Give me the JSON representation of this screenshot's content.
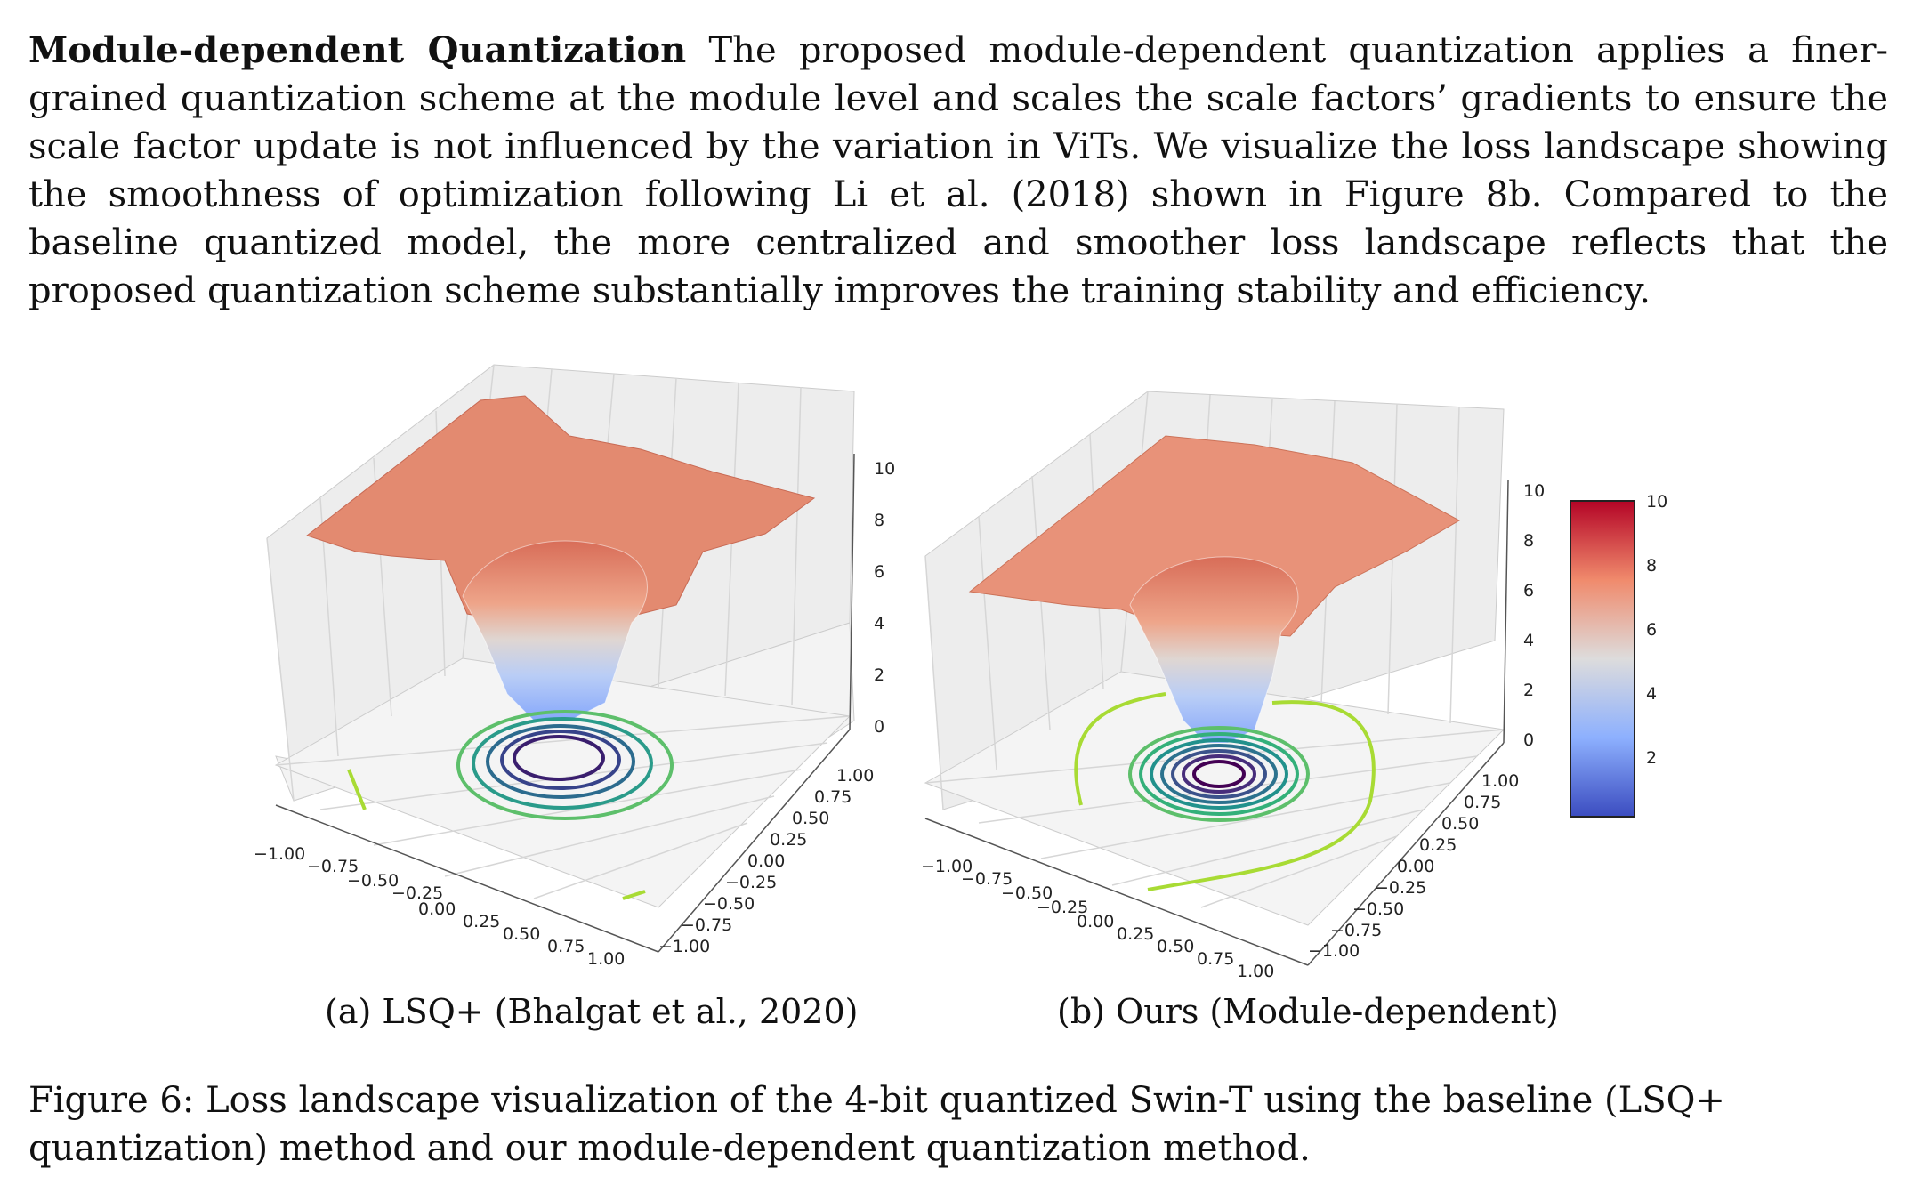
{
  "paragraph": {
    "heading": "Module-dependent Quantization",
    "text": "The proposed module-dependent quantization applies a finer-grained quantization scheme at the module level and scales the scale factors’ gradients to ensure the scale factor update is not influenced by the variation in ViTs. We visualize the loss landscape showing the smoothness of optimization following Li et al. (2018) shown in Figure 8b. Compared to the baseline quantized model, the more centralized and smoother loss landscape reflects that the proposed quantization scheme substantially improves the training stability and efficiency."
  },
  "chart_data": [
    {
      "type": "surface3d",
      "title": "(a) LSQ+ (Bhalgat et al., 2020)",
      "x_ticks": [
        "−1.00",
        "−0.75",
        "−0.50",
        "−0.25",
        "0.00",
        "0.25",
        "0.50",
        "0.75",
        "1.00"
      ],
      "y_ticks": [
        "−1.00",
        "−0.75",
        "−0.50",
        "−0.25",
        "0.00",
        "0.25",
        "0.50",
        "0.75",
        "1.00"
      ],
      "z_ticks": [
        "0",
        "2",
        "4",
        "6",
        "8",
        "10"
      ],
      "zlim": [
        0,
        10
      ],
      "contours": 5
    },
    {
      "type": "surface3d",
      "title": "(b) Ours (Module-dependent)",
      "x_ticks": [
        "−1.00",
        "−0.75",
        "−0.50",
        "−0.25",
        "0.00",
        "0.25",
        "0.50",
        "0.75",
        "1.00"
      ],
      "y_ticks": [
        "−1.00",
        "−0.75",
        "−0.50",
        "−0.25",
        "0.00",
        "0.25",
        "0.50",
        "0.75",
        "1.00"
      ],
      "z_ticks": [
        "0",
        "2",
        "4",
        "6",
        "8",
        "10"
      ],
      "zlim": [
        0,
        10
      ],
      "contours": 7
    }
  ],
  "colorbar": {
    "ticks": [
      "10",
      "8",
      "6",
      "4",
      "2"
    ],
    "colors": [
      "#b40426",
      "#f08a6c",
      "#dddcdc",
      "#8db0fe",
      "#3b4cc0"
    ]
  },
  "caption": "Figure 6: Loss landscape visualization of the 4-bit quantized Swin-T using the baseline (LSQ+ quantization) method and our module-dependent quantization method."
}
